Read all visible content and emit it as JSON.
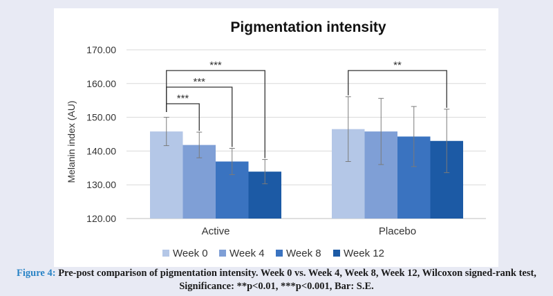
{
  "chart_data": {
    "type": "bar",
    "title": "Pigmentation intensity",
    "ylabel": "Melanin index (AU)",
    "xlabel": "",
    "ylim": [
      120,
      170
    ],
    "yticks": [
      120,
      130,
      140,
      150,
      160,
      170
    ],
    "ytick_labels": [
      "120.00",
      "130.00",
      "140.00",
      "150.00",
      "160.00",
      "170.00"
    ],
    "grid": true,
    "legend_position": "bottom",
    "categories": [
      "Active",
      "Placebo"
    ],
    "series": [
      {
        "name": "Week 0",
        "color": "#b4c7e7",
        "values": [
          145.8,
          146.5
        ],
        "se": [
          4.2,
          9.6
        ]
      },
      {
        "name": "Week 4",
        "color": "#7f9fd6",
        "values": [
          141.8,
          145.8
        ],
        "se": [
          3.8,
          9.8
        ]
      },
      {
        "name": "Week 8",
        "color": "#3a73c0",
        "values": [
          136.9,
          144.3
        ],
        "se": [
          3.9,
          8.9
        ]
      },
      {
        "name": "Week 12",
        "color": "#1c5aa5",
        "values": [
          133.9,
          143.0
        ],
        "se": [
          3.6,
          9.4
        ]
      }
    ],
    "significance": [
      {
        "category": "Active",
        "from": "Week 0",
        "to": "Week 4",
        "label": "***"
      },
      {
        "category": "Active",
        "from": "Week 0",
        "to": "Week 8",
        "label": "***"
      },
      {
        "category": "Active",
        "from": "Week 0",
        "to": "Week 12",
        "label": "***"
      },
      {
        "category": "Placebo",
        "from": "Week 0",
        "to": "Week 12",
        "label": "**"
      }
    ]
  },
  "caption": {
    "label": "Figure 4:",
    "text": "Pre-post comparison of pigmentation intensity. Week 0 vs. Week 4, Week 8, Week 12, Wilcoxon signed-rank test, Significance: **p<0.01, ***p<0.001, Bar: S.E."
  }
}
